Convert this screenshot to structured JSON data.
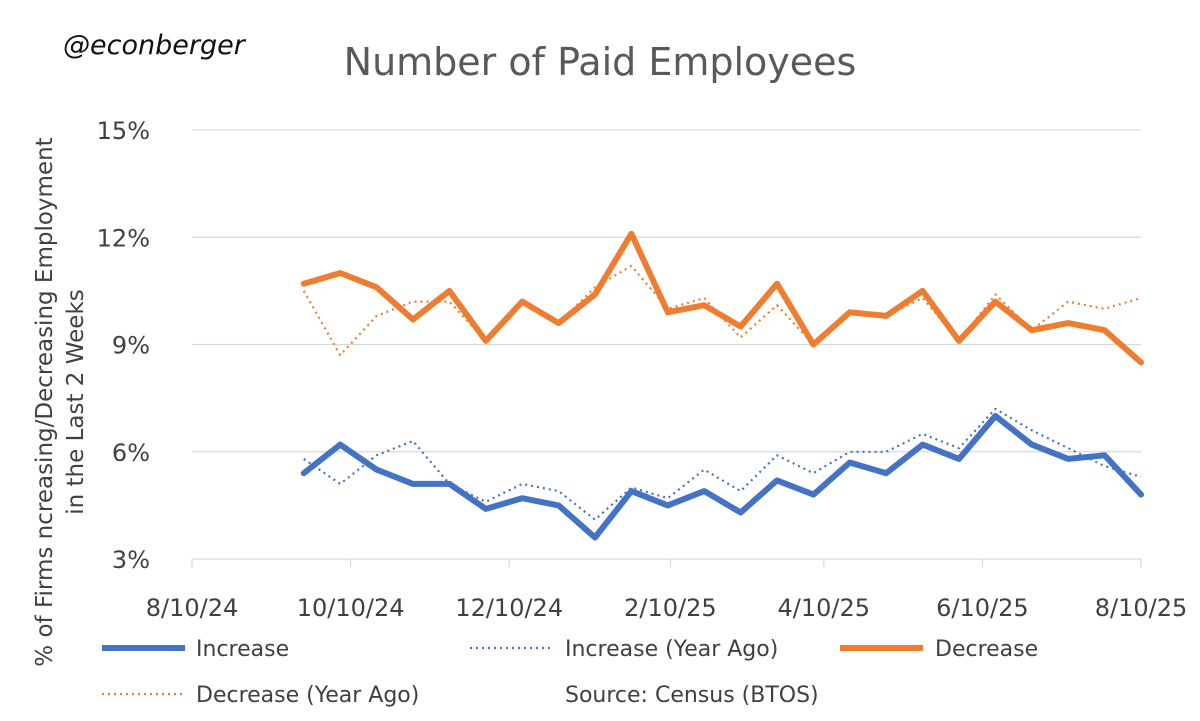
{
  "watermark": "@econberger",
  "source": "Source: Census (BTOS)",
  "chart_data": {
    "type": "line",
    "title": "Number of Paid Employees",
    "ylabel_line1": "% of Firms ncreasing/Decreasing Employment",
    "ylabel_line2": "in the Last 2 Weeks",
    "ylim": [
      3,
      15
    ],
    "yticks": [
      3,
      6,
      9,
      12,
      15
    ],
    "ytick_labels": [
      "3%",
      "6%",
      "9%",
      "12%",
      "15%"
    ],
    "xlim": [
      "2024-08-10",
      "2025-08-10"
    ],
    "xticks": [
      "2024-08-10",
      "2024-10-10",
      "2024-12-10",
      "2025-02-10",
      "2025-04-10",
      "2025-06-10",
      "2025-08-10"
    ],
    "xtick_labels": [
      "8/10/24",
      "10/10/24",
      "12/10/24",
      "2/10/25",
      "4/10/25",
      "6/10/25",
      "8/10/25"
    ],
    "grid": true,
    "legend_position": "bottom",
    "x": [
      "2024-09-22",
      "2024-10-06",
      "2024-10-20",
      "2024-11-03",
      "2024-11-17",
      "2024-12-01",
      "2024-12-15",
      "2024-12-29",
      "2025-01-12",
      "2025-01-26",
      "2025-02-09",
      "2025-02-23",
      "2025-03-09",
      "2025-03-23",
      "2025-04-06",
      "2025-04-20",
      "2025-05-04",
      "2025-05-18",
      "2025-06-01",
      "2025-06-15",
      "2025-06-29",
      "2025-07-13",
      "2025-07-27",
      "2025-08-10"
    ],
    "series": [
      {
        "name": "Increase",
        "color": "#4472c4",
        "style": "solid",
        "values": [
          5.4,
          6.2,
          5.5,
          5.1,
          5.1,
          4.4,
          4.7,
          4.5,
          3.6,
          4.9,
          4.5,
          4.9,
          4.3,
          5.2,
          4.8,
          5.7,
          5.4,
          6.2,
          5.8,
          7.0,
          6.2,
          5.8,
          5.9,
          4.8
        ]
      },
      {
        "name": "Increase (Year Ago)",
        "color": "#4472c4",
        "style": "dotted",
        "values": [
          5.8,
          5.1,
          5.9,
          6.3,
          5.1,
          4.6,
          5.1,
          4.9,
          4.1,
          5.0,
          4.7,
          5.5,
          4.9,
          5.9,
          5.4,
          6.0,
          6.0,
          6.5,
          6.1,
          7.2,
          6.6,
          6.1,
          5.6,
          5.3
        ]
      },
      {
        "name": "Decrease",
        "color": "#ed7d31",
        "style": "solid",
        "values": [
          10.7,
          11.0,
          10.6,
          9.7,
          10.5,
          9.1,
          10.2,
          9.6,
          10.4,
          12.1,
          9.9,
          10.1,
          9.5,
          10.7,
          9.0,
          9.9,
          9.8,
          10.5,
          9.1,
          10.2,
          9.4,
          9.6,
          9.4,
          8.5
        ]
      },
      {
        "name": "Decrease (Year Ago)",
        "color": "#ed7d31",
        "style": "dotted",
        "values": [
          10.5,
          8.7,
          9.8,
          10.2,
          10.2,
          9.1,
          10.2,
          9.6,
          10.6,
          11.2,
          10.0,
          10.3,
          9.2,
          10.1,
          9.0,
          9.9,
          9.8,
          10.3,
          9.1,
          10.4,
          9.4,
          10.2,
          10.0,
          10.3
        ]
      }
    ]
  }
}
